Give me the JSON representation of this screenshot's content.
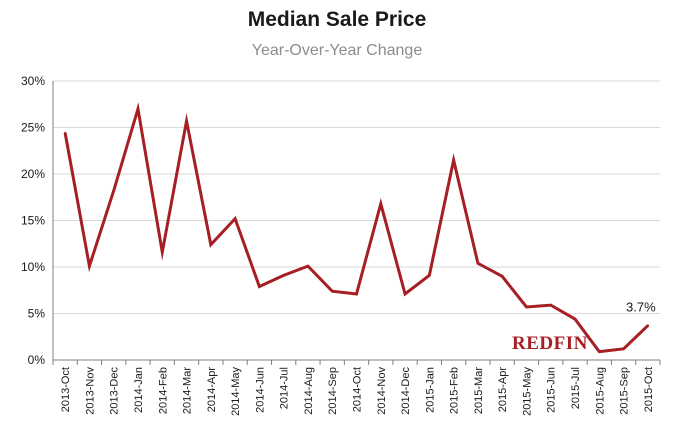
{
  "chart_data": {
    "type": "line",
    "title": "Median Sale Price",
    "subtitle": "Year-Over-Year Change",
    "xlabel": "",
    "ylabel": "",
    "ylim": [
      0,
      30
    ],
    "ytick_labels": [
      "0%",
      "5%",
      "10%",
      "15%",
      "20%",
      "25%",
      "30%"
    ],
    "y_tick_values": [
      0,
      5,
      10,
      15,
      20,
      25,
      30
    ],
    "grid": true,
    "categories": [
      "2013-Oct",
      "2013-Nov",
      "2013-Dec",
      "2014-Jan",
      "2014-Feb",
      "2014-Mar",
      "2014-Apr",
      "2014-May",
      "2014-Jun",
      "2014-Jul",
      "2014-Aug",
      "2014-Sep",
      "2014-Oct",
      "2014-Nov",
      "2014-Dec",
      "2015-Jan",
      "2015-Feb",
      "2015-Mar",
      "2015-Apr",
      "2015-May",
      "2015-Jun",
      "2015-Jul",
      "2015-Aug",
      "2015-Sep",
      "2015-Oct"
    ],
    "series": [
      {
        "name": "Median Sale Price YoY Change (%)",
        "color": "#a61f24",
        "values": [
          24.4,
          10.1,
          18.2,
          27.0,
          11.6,
          25.7,
          12.4,
          15.2,
          7.9,
          9.1,
          10.1,
          7.4,
          7.1,
          16.8,
          7.1,
          9.1,
          21.5,
          10.4,
          9.0,
          5.7,
          5.9,
          4.4,
          0.9,
          1.2,
          3.7
        ]
      }
    ],
    "annotation": {
      "text": "3.7%",
      "category": "2015-Oct"
    }
  },
  "branding": {
    "logo_text": "Redfin",
    "logo_color": "#a61f24"
  }
}
